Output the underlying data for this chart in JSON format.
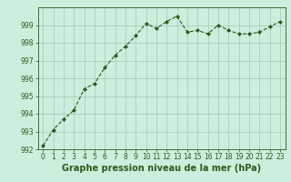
{
  "x": [
    0,
    1,
    2,
    3,
    4,
    5,
    6,
    7,
    8,
    9,
    10,
    11,
    12,
    13,
    14,
    15,
    16,
    17,
    18,
    19,
    20,
    21,
    22,
    23
  ],
  "y": [
    992.2,
    993.1,
    993.7,
    994.2,
    995.4,
    995.7,
    996.6,
    997.3,
    997.8,
    998.4,
    999.1,
    998.8,
    999.2,
    999.5,
    998.6,
    998.7,
    998.5,
    999.0,
    998.7,
    998.5,
    998.5,
    998.6,
    998.9,
    999.2
  ],
  "line_color": "#2d5a1b",
  "marker": "D",
  "marker_size": 2.0,
  "bg_color": "#cceedd",
  "grid_color": "#99ccbb",
  "xlabel": "Graphe pression niveau de la mer (hPa)",
  "xlabel_fontsize": 7,
  "xlabel_color": "#2d5a1b",
  "ylim": [
    992,
    1000
  ],
  "xlim_min": -0.5,
  "xlim_max": 23.5,
  "yticks": [
    992,
    993,
    994,
    995,
    996,
    997,
    998,
    999
  ],
  "xticks": [
    0,
    1,
    2,
    3,
    4,
    5,
    6,
    7,
    8,
    9,
    10,
    11,
    12,
    13,
    14,
    15,
    16,
    17,
    18,
    19,
    20,
    21,
    22,
    23
  ],
  "tick_label_fontsize": 5.5,
  "tick_label_color": "#2d5a1b",
  "linewidth": 0.8,
  "spine_color": "#2d5a1b"
}
